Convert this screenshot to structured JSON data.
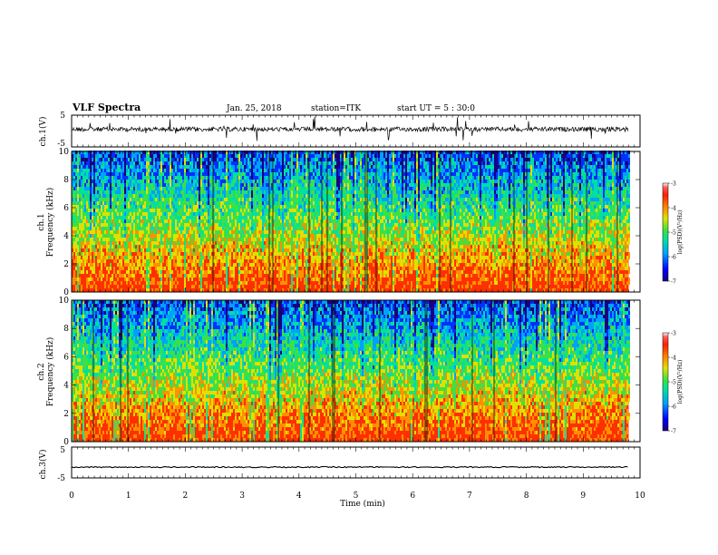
{
  "header": {
    "title": "VLF Spectra",
    "date": "Jan. 25, 2018",
    "station": "station=ITK",
    "start": "start UT = 5 : 30:0"
  },
  "panels": {
    "ch1_wave": {
      "ylabel": "ch.1(V)",
      "ticks": [
        "5",
        "-5"
      ]
    },
    "ch1_spec": {
      "ylabel1": "ch.1",
      "ylabel2": "Frequency (kHz)"
    },
    "ch2_spec": {
      "ylabel1": "ch.2",
      "ylabel2": "Frequency (kHz)"
    },
    "ch3_wave": {
      "ylabel": "ch.3(V)",
      "ticks": [
        "5",
        "-5"
      ]
    }
  },
  "colorbar": {
    "label": "log(PSD)(V²/Hz)",
    "ticks": [
      "-3",
      "-4",
      "-5",
      "-6",
      "-7"
    ],
    "colors": [
      "#1a0080",
      "#0000ff",
      "#00a0ff",
      "#00e0a0",
      "#40e040",
      "#e0e000",
      "#ff8000",
      "#ff2000",
      "#ff4040",
      "#ffffff"
    ]
  },
  "chart_data": [
    {
      "type": "line",
      "title": "VLF Spectra",
      "ylabel": "ch.1(V)",
      "xlabel": "",
      "xlim": [
        0,
        10
      ],
      "ylim": [
        -5,
        5
      ],
      "x": [
        0,
        1,
        2,
        3,
        4,
        5,
        6,
        7,
        8,
        9,
        9.8
      ],
      "series": [
        {
          "values": [
            0,
            0,
            0,
            0,
            0,
            0,
            0,
            0,
            0,
            0,
            0
          ]
        }
      ]
    },
    {
      "type": "heatmap",
      "ylabel": "Frequency (kHz)",
      "xlim": [
        0,
        10
      ],
      "ylim": [
        0,
        10
      ],
      "yticks": [
        "0",
        "2",
        "4",
        "6",
        "8",
        "10"
      ],
      "colorbar_range": [
        -7,
        -3
      ],
      "colorbar_label": "log(PSD)(V²/Hz)"
    },
    {
      "type": "heatmap",
      "ylabel": "Frequency (kHz)",
      "xlim": [
        0,
        10
      ],
      "ylim": [
        0,
        10
      ],
      "yticks": [
        "0",
        "2",
        "4",
        "6",
        "8",
        "10"
      ],
      "colorbar_range": [
        -7,
        -3
      ],
      "colorbar_label": "log(PSD)(V²/Hz)"
    },
    {
      "type": "line",
      "ylabel": "ch.3(V)",
      "xlabel": "Time (min)",
      "xlim": [
        0,
        10
      ],
      "ylim": [
        -5,
        5
      ],
      "xticks": [
        "0",
        "1",
        "2",
        "3",
        "4",
        "5",
        "6",
        "7",
        "8",
        "9",
        "10"
      ],
      "x": [
        0,
        9.8
      ],
      "series": [
        {
          "values": [
            -1.5,
            -1.5
          ]
        }
      ]
    }
  ]
}
